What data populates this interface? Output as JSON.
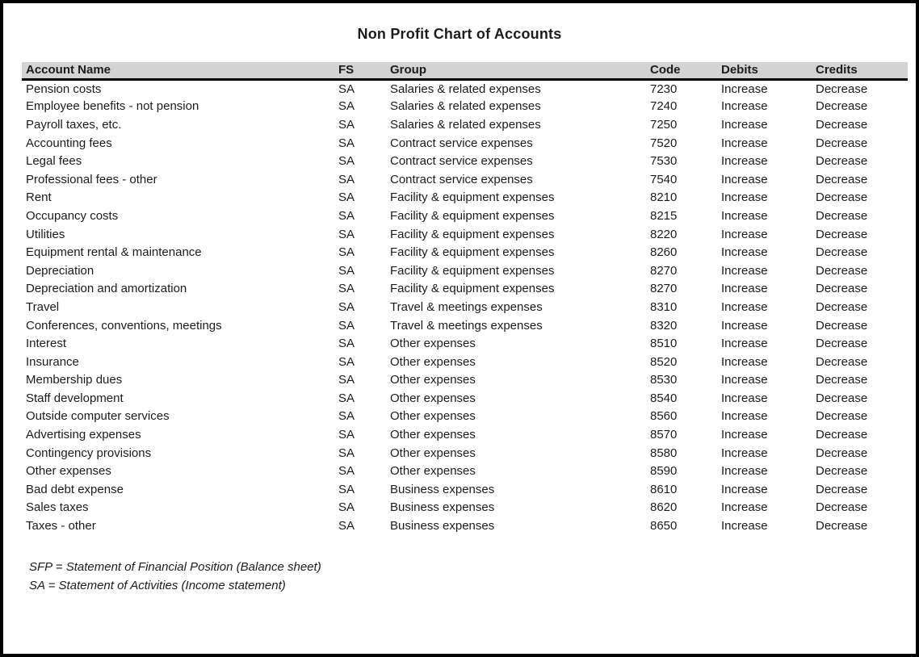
{
  "title": "Non Profit Chart of Accounts",
  "colors": {
    "header_band_bg": "#d3d3d3",
    "header_underline": "#000000",
    "page_border": "#000000",
    "text": "#1c1c1c"
  },
  "table": {
    "columns": [
      "Account Name",
      "FS",
      "Group",
      "Code",
      "Debits",
      "Credits"
    ],
    "rows": [
      [
        "Pension costs",
        "SA",
        "Salaries & related expenses",
        "7230",
        "Increase",
        "Decrease"
      ],
      [
        "Employee benefits - not pension",
        "SA",
        "Salaries & related expenses",
        "7240",
        "Increase",
        "Decrease"
      ],
      [
        "Payroll taxes, etc.",
        "SA",
        "Salaries & related expenses",
        "7250",
        "Increase",
        "Decrease"
      ],
      [
        "Accounting fees",
        "SA",
        "Contract service expenses",
        "7520",
        "Increase",
        "Decrease"
      ],
      [
        "Legal fees",
        "SA",
        "Contract service expenses",
        "7530",
        "Increase",
        "Decrease"
      ],
      [
        "Professional fees - other",
        "SA",
        "Contract service expenses",
        "7540",
        "Increase",
        "Decrease"
      ],
      [
        "Rent",
        "SA",
        "Facility & equipment expenses",
        "8210",
        "Increase",
        "Decrease"
      ],
      [
        "Occupancy costs",
        "SA",
        "Facility & equipment expenses",
        "8215",
        "Increase",
        "Decrease"
      ],
      [
        "Utilities",
        "SA",
        "Facility & equipment expenses",
        "8220",
        "Increase",
        "Decrease"
      ],
      [
        "Equipment rental & maintenance",
        "SA",
        "Facility & equipment expenses",
        "8260",
        "Increase",
        "Decrease"
      ],
      [
        "Depreciation",
        "SA",
        "Facility & equipment expenses",
        "8270",
        "Increase",
        "Decrease"
      ],
      [
        "Depreciation and amortization",
        "SA",
        "Facility & equipment expenses",
        "8270",
        "Increase",
        "Decrease"
      ],
      [
        "Travel",
        "SA",
        "Travel & meetings expenses",
        "8310",
        "Increase",
        "Decrease"
      ],
      [
        "Conferences, conventions, meetings",
        "SA",
        "Travel & meetings expenses",
        "8320",
        "Increase",
        "Decrease"
      ],
      [
        "Interest",
        "SA",
        "Other expenses",
        "8510",
        "Increase",
        "Decrease"
      ],
      [
        "Insurance",
        "SA",
        "Other expenses",
        "8520",
        "Increase",
        "Decrease"
      ],
      [
        "Membership dues",
        "SA",
        "Other expenses",
        "8530",
        "Increase",
        "Decrease"
      ],
      [
        "Staff development",
        "SA",
        "Other expenses",
        "8540",
        "Increase",
        "Decrease"
      ],
      [
        "Outside computer services",
        "SA",
        "Other expenses",
        "8560",
        "Increase",
        "Decrease"
      ],
      [
        "Advertising expenses",
        "SA",
        "Other expenses",
        "8570",
        "Increase",
        "Decrease"
      ],
      [
        "Contingency provisions",
        "SA",
        "Other expenses",
        "8580",
        "Increase",
        "Decrease"
      ],
      [
        "Other expenses",
        "SA",
        "Other expenses",
        "8590",
        "Increase",
        "Decrease"
      ],
      [
        "Bad debt expense",
        "SA",
        "Business expenses",
        "8610",
        "Increase",
        "Decrease"
      ],
      [
        "Sales taxes",
        "SA",
        "Business expenses",
        "8620",
        "Increase",
        "Decrease"
      ],
      [
        "Taxes - other",
        "SA",
        "Business expenses",
        "8650",
        "Increase",
        "Decrease"
      ]
    ]
  },
  "footnotes": [
    "SFP = Statement of Financial Position (Balance sheet)",
    "SA = Statement of Activities (Income statement)"
  ]
}
